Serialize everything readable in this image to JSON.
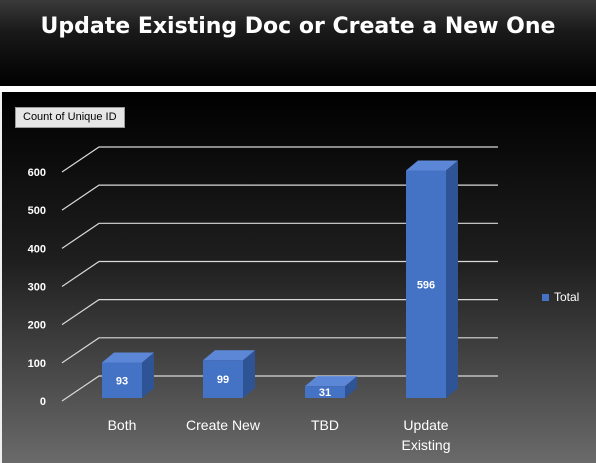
{
  "page": {
    "title": "Update Existing Doc or Create a New One"
  },
  "chart": {
    "field_button": "Count of Unique ID"
  },
  "chart_data": {
    "type": "bar",
    "categories": [
      "Both",
      "Create New",
      "TBD",
      "Update Existing"
    ],
    "series": [
      {
        "name": "Total",
        "values": [
          93,
          99,
          31,
          596
        ]
      }
    ],
    "ylim": [
      0,
      600
    ],
    "yticks": [
      0,
      100,
      200,
      300,
      400,
      500,
      600
    ],
    "grid": true,
    "legend": "right",
    "data_labels": true,
    "colors": {
      "bar_front": "#4472C4",
      "bar_side": "#2E5496",
      "bar_top": "#5B87D6",
      "gridline": "#d9d9d9",
      "text": "#ffffff"
    }
  }
}
